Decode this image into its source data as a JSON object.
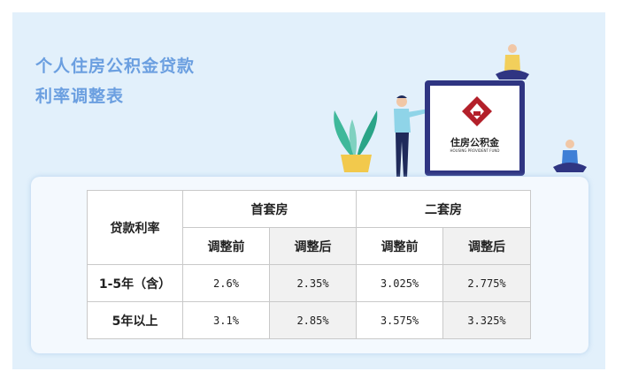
{
  "title": {
    "line1": "个人住房公积金贷款",
    "line2": "利率调整表"
  },
  "logo": {
    "name": "住房公积金",
    "subtitle": "HOUSING PROVIDENT FUND",
    "color": "#b3202a"
  },
  "table": {
    "corner": "贷款利率",
    "groups": [
      "首套房",
      "二套房"
    ],
    "subheaders": [
      "调整前",
      "调整后",
      "调整前",
      "调整后"
    ],
    "rows": [
      {
        "label": "1-5年（含）",
        "values": [
          "2.6%",
          "2.35%",
          "3.025%",
          "2.775%"
        ]
      },
      {
        "label": "5年以上",
        "values": [
          "3.1%",
          "2.85%",
          "3.575%",
          "3.325%"
        ]
      }
    ]
  }
}
